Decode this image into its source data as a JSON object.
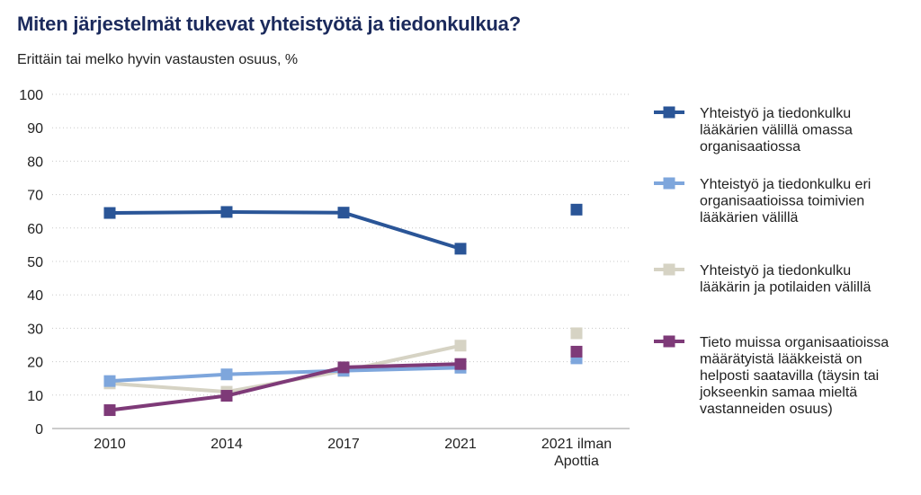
{
  "title": "Miten järjestelmät tukevat yhteistyötä ja tiedonkulkua?",
  "subtitle": "Erittäin tai melko hyvin vastausten osuus, %",
  "chart_data": {
    "type": "line",
    "title": "Miten järjestelmät tukevat yhteistyötä ja tiedonkulkua?",
    "subtitle": "Erittäin tai melko hyvin vastausten osuus, %",
    "xlabel": "",
    "ylabel": "",
    "categories": [
      "2010",
      "2014",
      "2017",
      "2021",
      "2021 ilman Apottia"
    ],
    "category_lines": [
      [
        "2010"
      ],
      [
        "2014"
      ],
      [
        "2017"
      ],
      [
        "2021"
      ],
      [
        "2021 ilman",
        "Apottia"
      ]
    ],
    "ylim": [
      0,
      100
    ],
    "yticks": [
      0,
      10,
      20,
      30,
      40,
      50,
      60,
      70,
      80,
      90,
      100
    ],
    "grid": "horizontal-dotted",
    "legend_position": "right",
    "series": [
      {
        "name": "Yhteistyö ja tiedonkulku lääkärien välillä omassa organisaatiossa",
        "name_lines": [
          "Yhteistyö ja tiedonkulku",
          "lääkärien välillä omassa",
          "organisaatiossa"
        ],
        "color": "#2a5597",
        "values": [
          64.5,
          64.8,
          64.6,
          53.8,
          65.5
        ]
      },
      {
        "name": "Yhteistyö ja tiedonkulku eri organisaatioissa toimivien lääkärien välillä",
        "name_lines": [
          "Yhteistyö ja tiedonkulku eri",
          "organisaatioissa toimivien",
          "lääkärien välillä"
        ],
        "color": "#7ea6dc",
        "values": [
          14.2,
          16.2,
          17.3,
          18.2,
          21.0
        ]
      },
      {
        "name": "Yhteistyö ja tiedonkulku lääkärin ja potilaiden välillä",
        "name_lines": [
          "Yhteistyö ja tiedonkulku",
          "lääkärin ja potilaiden välillä"
        ],
        "color": "#d6d3c4",
        "values": [
          13.5,
          11.0,
          17.2,
          24.8,
          28.5
        ]
      },
      {
        "name": "Tieto muissa organisaatioissa määrätyistä lääkkeistä on helposti saatavilla (täysin tai jokseenkin samaa mieltä vastanneiden osuus)",
        "name_lines": [
          "Tieto muissa organisaatioissa",
          "määrätyistä lääkkeistä on",
          "helposti saatavilla (täysin tai",
          "jokseenkin samaa mieltä",
          "vastanneiden osuus)"
        ],
        "color": "#7e3a78",
        "values": [
          5.5,
          9.8,
          18.3,
          19.3,
          23.0
        ]
      }
    ]
  }
}
